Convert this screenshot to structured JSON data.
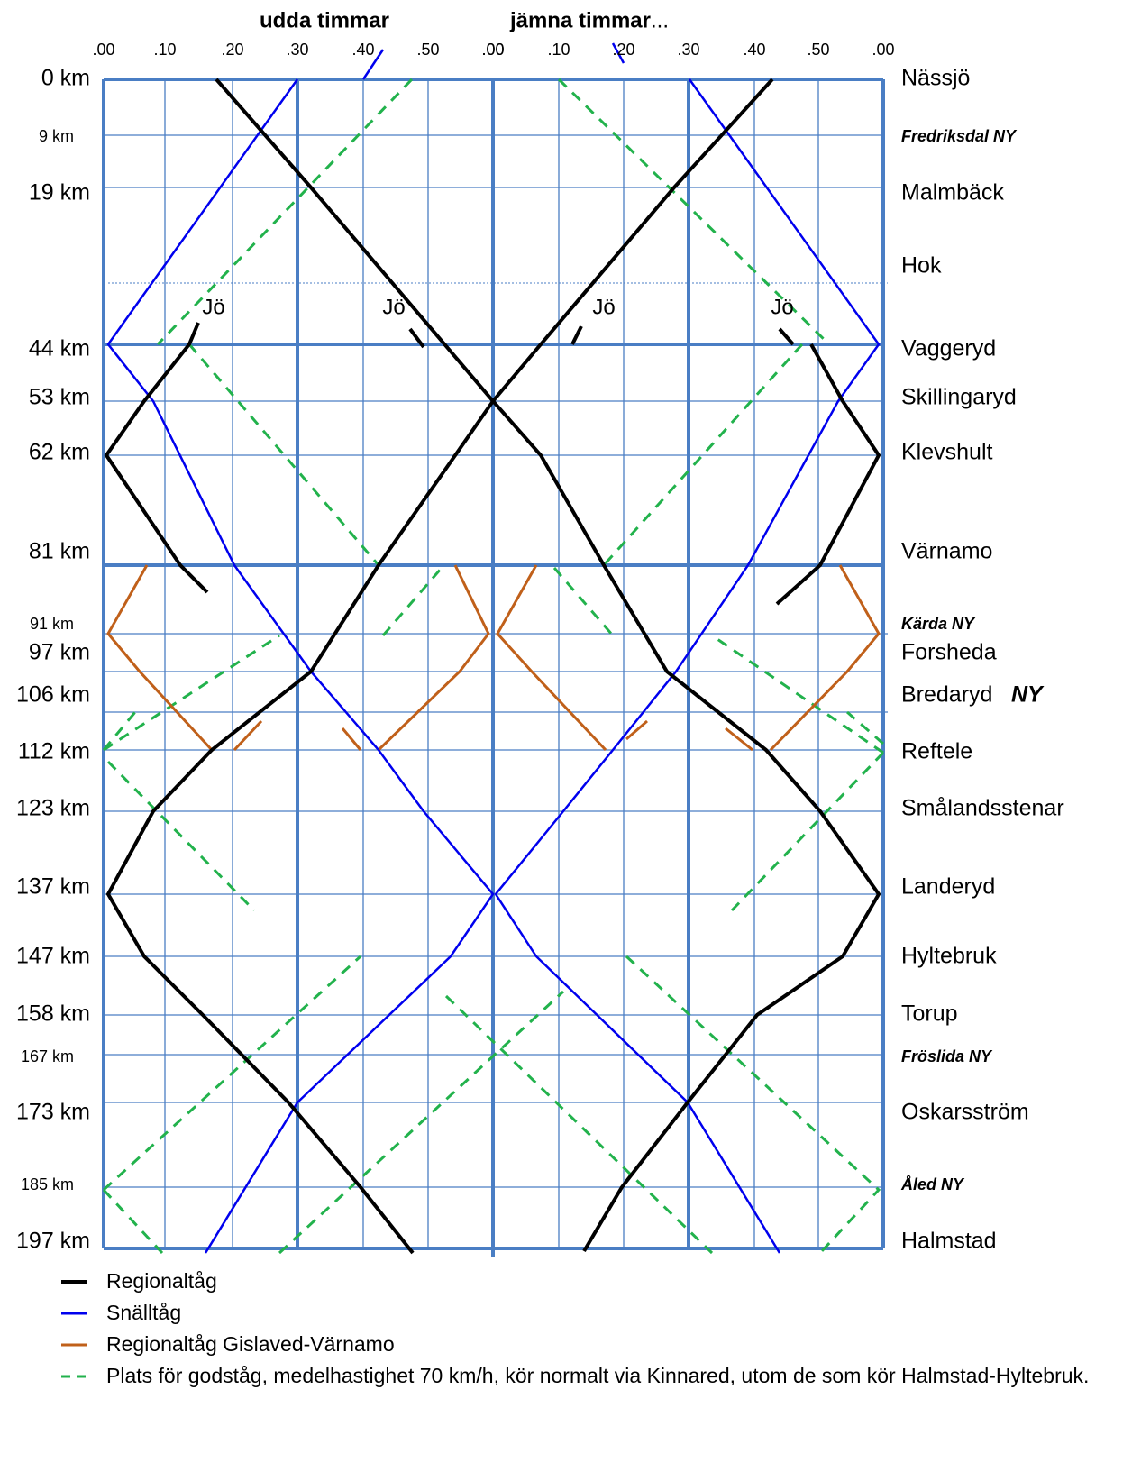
{
  "header": {
    "odd_hours": "udda timmar",
    "even_hours": "jämna timmar",
    "even_suffix": "..."
  },
  "minute_ticks": [
    ".00",
    ".10",
    ".20",
    ".30",
    ".40",
    ".50",
    ".00"
  ],
  "stations": [
    {
      "km": "0 km",
      "name": "Nässjö"
    },
    {
      "km": "9 km",
      "name": "Fredriksdal NY"
    },
    {
      "km": "19 km",
      "name": "Malmbäck"
    },
    {
      "name": "Hok"
    },
    {
      "km": "44 km",
      "name": "Vaggeryd"
    },
    {
      "km": "53 km",
      "name": "Skillingaryd"
    },
    {
      "km": "62 km",
      "name": "Klevshult"
    },
    {
      "km": "81 km",
      "name": "Värnamo"
    },
    {
      "km": "91 km",
      "name": "Kärda NY"
    },
    {
      "km": "97 km",
      "name": "Forsheda"
    },
    {
      "km": "106 km",
      "name": "Bredaryd",
      "suffix": "NY"
    },
    {
      "km": "112 km",
      "name": "Reftele"
    },
    {
      "km": "123 km",
      "name": "Smålandsstenar"
    },
    {
      "km": "137 km",
      "name": "Landeryd"
    },
    {
      "km": "147 km",
      "name": "Hyltebruk"
    },
    {
      "km": "158 km",
      "name": "Torup"
    },
    {
      "km": "167 km",
      "name": "Fröslida NY"
    },
    {
      "km": "173 km",
      "name": "Oskarsström"
    },
    {
      "km": "185 km",
      "name": "Åled NY"
    },
    {
      "km": "197 km",
      "name": "Halmstad"
    }
  ],
  "turn_labels": [
    "Jö",
    "Jö",
    "Jö",
    "Jö"
  ],
  "legend": [
    "Regionaltåg",
    "Snälltåg",
    "Regionaltåg Gislaved-Värnamo",
    "Plats för godståg, medelhastighet 70 km/h, kör normalt via Kinnared, utom de som kör Halmstad-Hyltebruk."
  ]
}
